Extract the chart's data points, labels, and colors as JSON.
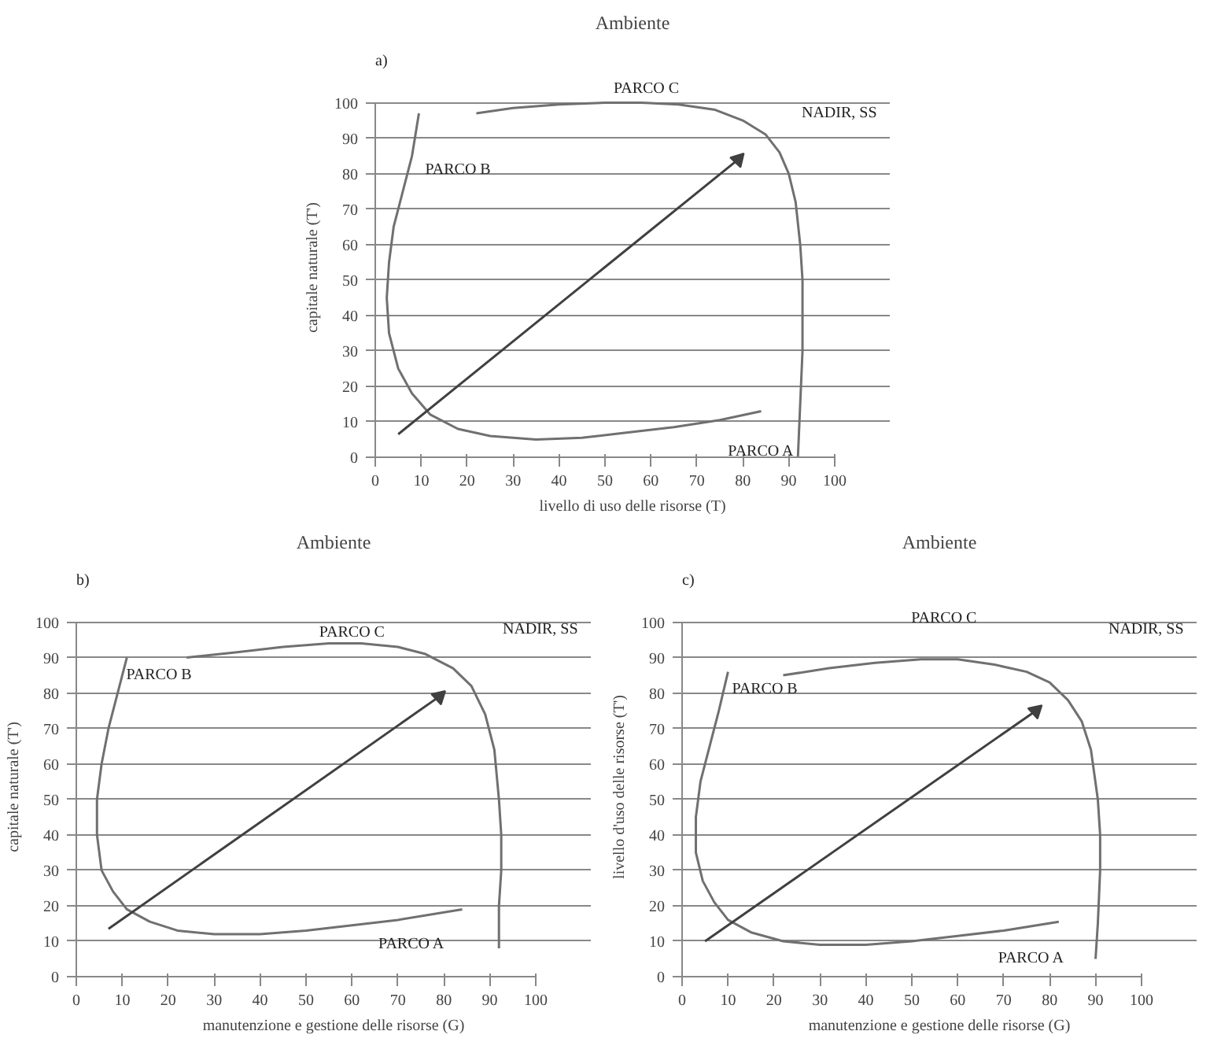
{
  "chart_data": [
    {
      "type": "line",
      "title": "Ambiente",
      "xlabel": "livello di uso delle risorse (T)",
      "ylabel": "capitale naturale (T')",
      "xlim": [
        0,
        100
      ],
      "ylim": [
        0,
        100
      ],
      "xticks": [
        0,
        10,
        20,
        30,
        40,
        50,
        60,
        70,
        80,
        90,
        100
      ],
      "yticks": [
        0,
        10,
        20,
        30,
        40,
        50,
        60,
        70,
        80,
        90,
        100
      ],
      "grid": "y",
      "annotations": [
        "a)",
        "PARCO C",
        "PARCO B",
        "NADIR, SS",
        "PARCO A"
      ],
      "series": [
        {
          "color": "#707070",
          "x": [
            9.5,
            8,
            6,
            4,
            3,
            2.5,
            3,
            5,
            8,
            12,
            18,
            25,
            35,
            45,
            55,
            65,
            75,
            84
          ],
          "values": [
            97,
            85,
            75,
            65,
            55,
            45,
            35,
            25,
            18,
            12,
            8,
            6,
            5,
            5.5,
            7,
            8.5,
            10.5,
            13
          ]
        },
        {
          "color": "#707070",
          "x": [
            22,
            30,
            40,
            50,
            58,
            66,
            74,
            80,
            85,
            88,
            90,
            91.5,
            92.5,
            93,
            93,
            93,
            92.5,
            92
          ],
          "values": [
            97,
            98.5,
            99.5,
            100,
            100,
            99.5,
            98,
            95,
            91,
            86,
            80,
            72,
            60,
            50,
            40,
            30,
            15,
            0
          ]
        },
        {
          "color": "#404040",
          "marker": "triangle",
          "x": [
            5,
            79
          ],
          "values": [
            6.5,
            84
          ]
        }
      ]
    },
    {
      "type": "line",
      "title": "Ambiente",
      "xlabel": "manutenzione e gestione delle risorse (G)",
      "ylabel": "capitale naturale (T')",
      "xlim": [
        0,
        100
      ],
      "ylim": [
        0,
        100
      ],
      "xticks": [
        0,
        10,
        20,
        30,
        40,
        50,
        60,
        70,
        80,
        90,
        100
      ],
      "yticks": [
        0,
        10,
        20,
        30,
        40,
        50,
        60,
        70,
        80,
        90,
        100
      ],
      "grid": "y",
      "annotations": [
        "b)",
        "PARCO C",
        "PARCO B",
        "NADIR, SS",
        "PARCO A"
      ],
      "series": [
        {
          "color": "#707070",
          "x": [
            11,
            9,
            7,
            5.5,
            4.5,
            4.5,
            5.5,
            8,
            11,
            16,
            22,
            30,
            40,
            50,
            60,
            70,
            84
          ],
          "values": [
            90,
            80,
            70,
            60,
            50,
            40,
            30,
            24,
            19,
            15.5,
            13,
            12,
            12,
            13,
            14.5,
            16,
            19
          ]
        },
        {
          "color": "#707070",
          "x": [
            24,
            35,
            45,
            55,
            62,
            70,
            76,
            82,
            86,
            89,
            91,
            92,
            92.5,
            92.5,
            92,
            92
          ],
          "values": [
            90,
            91.5,
            93,
            94,
            94,
            93,
            91,
            87,
            82,
            74,
            64,
            50,
            40,
            30,
            20,
            8
          ]
        },
        {
          "color": "#404040",
          "marker": "triangle",
          "x": [
            7,
            79
          ],
          "values": [
            13.5,
            79
          ]
        }
      ]
    },
    {
      "type": "line",
      "title": "Ambiente",
      "xlabel": "manutenzione e gestione delle risorse (G)",
      "ylabel": "livello d'uso delle risorse (T')",
      "xlim": [
        0,
        100
      ],
      "ylim": [
        0,
        100
      ],
      "xticks": [
        0,
        10,
        20,
        30,
        40,
        50,
        60,
        70,
        80,
        90,
        100
      ],
      "yticks": [
        0,
        10,
        20,
        30,
        40,
        50,
        60,
        70,
        80,
        90,
        100
      ],
      "grid": "y",
      "annotations": [
        "c)",
        "PARCO C",
        "PARCO B",
        "NADIR, SS",
        "PARCO A"
      ],
      "series": [
        {
          "color": "#707070",
          "x": [
            10,
            8,
            6,
            4,
            3,
            3,
            4.5,
            7,
            10,
            15,
            22,
            30,
            40,
            50,
            60,
            70,
            82
          ],
          "values": [
            86,
            75,
            65,
            55,
            45,
            35,
            27,
            21,
            16,
            12.5,
            10,
            9,
            9,
            10,
            11.5,
            13,
            15.5
          ]
        },
        {
          "color": "#707070",
          "x": [
            22,
            32,
            42,
            52,
            60,
            68,
            75,
            80,
            84,
            87,
            89,
            90.5,
            91,
            91,
            90.5,
            90
          ],
          "values": [
            85,
            87,
            88.5,
            89.5,
            89.5,
            88,
            86,
            83,
            78,
            72,
            64,
            50,
            40,
            30,
            15,
            5
          ]
        },
        {
          "color": "#404040",
          "marker": "triangle",
          "x": [
            5,
            77
          ],
          "values": [
            10,
            75
          ]
        }
      ]
    }
  ]
}
